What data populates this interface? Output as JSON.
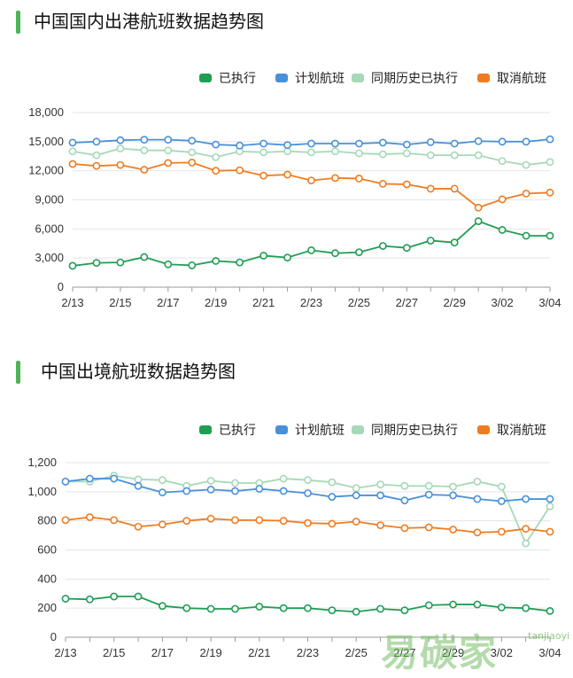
{
  "chart_data": [
    {
      "type": "line",
      "title": "中国国内出港航班数据趋势图",
      "categories": [
        "2/13",
        "2/14",
        "2/15",
        "2/16",
        "2/17",
        "2/18",
        "2/19",
        "2/20",
        "2/21",
        "2/22",
        "2/23",
        "2/24",
        "2/25",
        "2/26",
        "2/27",
        "2/28",
        "2/29",
        "3/01",
        "3/02",
        "3/03",
        "3/04"
      ],
      "tick_labels": [
        "2/13",
        "2/15",
        "2/17",
        "2/19",
        "2/21",
        "2/23",
        "2/25",
        "2/27",
        "2/29",
        "3/02",
        "3/04"
      ],
      "ylim": [
        0,
        18000
      ],
      "yticks": [
        0,
        3000,
        6000,
        9000,
        12000,
        15000,
        18000
      ],
      "ytick_labels": [
        "0",
        "3,000",
        "6,000",
        "9,000",
        "12,000",
        "15,000",
        "18,000"
      ],
      "legend": [
        "已执行",
        "计划航班",
        "同期历史已执行",
        "取消航班"
      ],
      "series": [
        {
          "name": "已执行",
          "color": "#1e9e54",
          "values": [
            2200,
            2500,
            2550,
            3100,
            2350,
            2250,
            2700,
            2550,
            3250,
            3050,
            3800,
            3500,
            3600,
            4250,
            4050,
            4800,
            4600,
            6800,
            5900,
            5300,
            5300
          ]
        },
        {
          "name": "计划航班",
          "color": "#4a90d9",
          "values": [
            14900,
            15000,
            15150,
            15200,
            15200,
            15100,
            14700,
            14600,
            14800,
            14650,
            14800,
            14800,
            14800,
            14900,
            14700,
            14950,
            14800,
            15050,
            15000,
            15000,
            15250
          ]
        },
        {
          "name": "同期历史已执行",
          "color": "#a5d9b7",
          "values": [
            14000,
            13600,
            14300,
            14100,
            14100,
            13900,
            13400,
            14000,
            13900,
            14000,
            13900,
            14000,
            13800,
            13700,
            13800,
            13600,
            13600,
            13600,
            13000,
            12600,
            12900
          ]
        },
        {
          "name": "取消航班",
          "color": "#ee7d22",
          "values": [
            12700,
            12500,
            12600,
            12100,
            12800,
            12850,
            12000,
            12050,
            11500,
            11600,
            11000,
            11250,
            11200,
            10650,
            10600,
            10150,
            10150,
            8200,
            9050,
            9650,
            9750
          ]
        }
      ]
    },
    {
      "type": "line",
      "title": "中国出境航班数据趋势图",
      "categories": [
        "2/13",
        "2/14",
        "2/15",
        "2/16",
        "2/17",
        "2/18",
        "2/19",
        "2/20",
        "2/21",
        "2/22",
        "2/23",
        "2/24",
        "2/25",
        "2/26",
        "2/27",
        "2/28",
        "2/29",
        "3/01",
        "3/02",
        "3/03",
        "3/04"
      ],
      "tick_labels": [
        "2/13",
        "2/15",
        "2/17",
        "2/19",
        "2/21",
        "2/23",
        "2/25",
        "2/27",
        "2/29",
        "3/02",
        "3/04"
      ],
      "ylim": [
        0,
        1200
      ],
      "yticks": [
        0,
        200,
        400,
        600,
        800,
        1000,
        1200
      ],
      "ytick_labels": [
        "0",
        "200",
        "400",
        "600",
        "800",
        "1,000",
        "1,200"
      ],
      "legend": [
        "已执行",
        "计划航班",
        "同期历史已执行",
        "取消航班"
      ],
      "series": [
        {
          "name": "已执行",
          "color": "#1e9e54",
          "values": [
            265,
            260,
            280,
            280,
            215,
            200,
            195,
            195,
            210,
            200,
            200,
            185,
            175,
            195,
            185,
            220,
            225,
            225,
            205,
            200,
            180
          ]
        },
        {
          "name": "计划航班",
          "color": "#4a90d9",
          "values": [
            1070,
            1090,
            1090,
            1040,
            995,
            1005,
            1015,
            1005,
            1020,
            1005,
            990,
            965,
            975,
            975,
            940,
            980,
            975,
            950,
            935,
            950,
            950
          ]
        },
        {
          "name": "同期历史已执行",
          "color": "#a5d9b7",
          "values": [
            1070,
            1070,
            1110,
            1085,
            1080,
            1040,
            1075,
            1060,
            1060,
            1090,
            1080,
            1065,
            1025,
            1050,
            1040,
            1040,
            1035,
            1070,
            1035,
            645,
            900
          ]
        },
        {
          "name": "取消航班",
          "color": "#ee7d22",
          "values": [
            805,
            825,
            805,
            760,
            775,
            800,
            815,
            805,
            805,
            800,
            785,
            780,
            795,
            770,
            750,
            755,
            740,
            720,
            725,
            745,
            725
          ]
        }
      ]
    }
  ],
  "watermark": {
    "text": "易碳家",
    "sub": "tanjiaoyi"
  }
}
